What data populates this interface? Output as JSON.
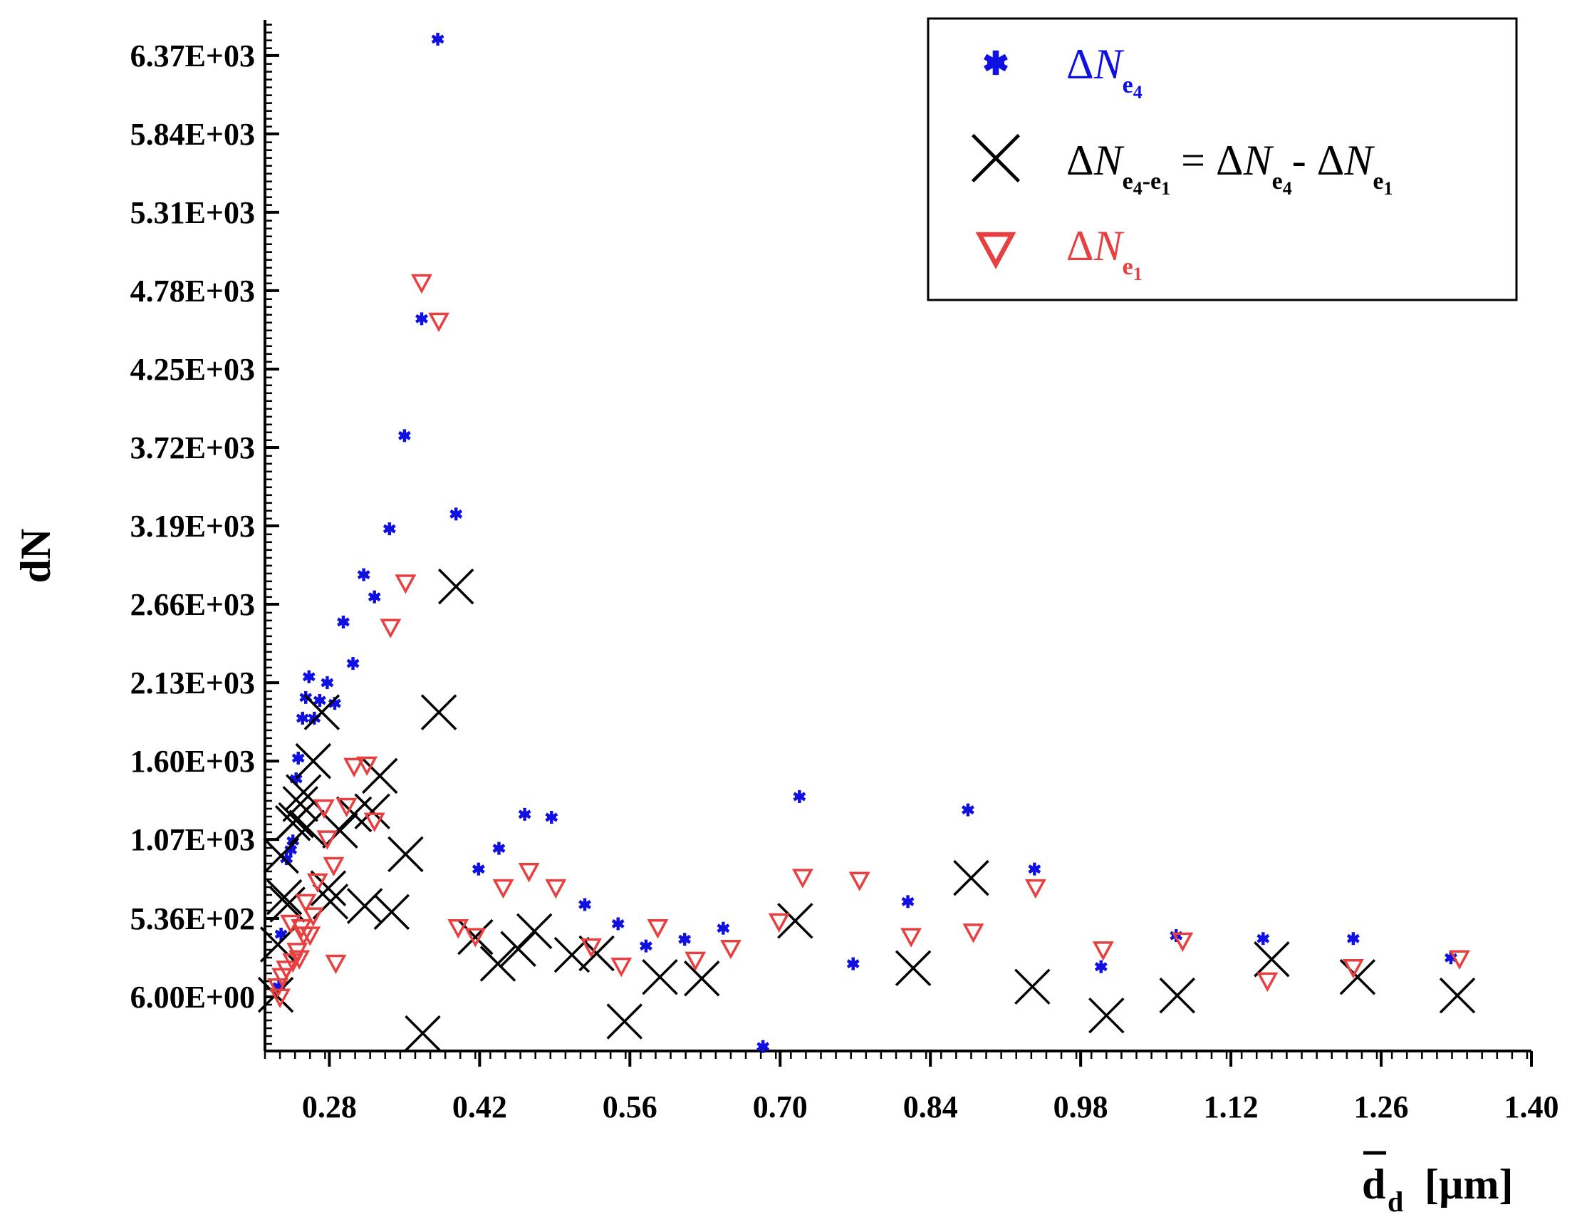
{
  "chart_data": {
    "type": "scatter",
    "title": "",
    "xlabel": "d_d [µm]",
    "xlabel_main": "d",
    "xlabel_sub": "d",
    "xlabel_unit": "[µm]",
    "ylabel": "dN",
    "xlim": [
      0.22,
      1.4
    ],
    "ylim": [
      -360,
      6610
    ],
    "x_ticks": [
      0.28,
      0.42,
      0.56,
      0.7,
      0.84,
      0.98,
      1.12,
      1.26,
      1.4
    ],
    "x_tick_labels": [
      "0.28",
      "0.42",
      "0.56",
      "0.70",
      "0.84",
      "0.98",
      "1.12",
      "1.26",
      "1.40"
    ],
    "y_ticks": [
      6,
      536,
      1070,
      1600,
      2130,
      2660,
      3190,
      3720,
      4250,
      4780,
      5310,
      5840,
      6370
    ],
    "y_tick_labels": [
      "6.00E+00",
      "5.36E+02",
      "1.07E+03",
      "1.60E+03",
      "2.13E+03",
      "2.66E+03",
      "3.19E+03",
      "3.72E+03",
      "4.25E+03",
      "4.78E+03",
      "5.31E+03",
      "5.84E+03",
      "6.37E+03"
    ],
    "legend_position": "top-right",
    "legend": [
      {
        "series": "dNe4",
        "delta": "Δ",
        "var": "N",
        "sub": "e",
        "subsub": "4",
        "mid": "",
        "var2": "",
        "sub2": "",
        "subsub2": "",
        "minus": "",
        "var3": "",
        "sub3": "",
        "subsub3": ""
      },
      {
        "series": "dNe4e1",
        "delta": "Δ",
        "var": "N",
        "sub": "e",
        "subsub": "4",
        "mid": "-e",
        "subsub_b": "1",
        "eq": " = ",
        "var2": "N",
        "sub2": "e",
        "subsub2": "4",
        "minus": "- ",
        "var3": "N",
        "sub3": "e",
        "subsub3": "1"
      },
      {
        "series": "dNe1",
        "delta": "Δ",
        "var": "N",
        "sub": "e",
        "subsub": "1"
      }
    ],
    "series": [
      {
        "name": "ΔN_e4",
        "key": "dNe4",
        "marker": "asterisk",
        "color": "#1010e0",
        "points": [
          [
            0.233,
            75
          ],
          [
            0.235,
            430
          ],
          [
            0.24,
            940
          ],
          [
            0.244,
            1000
          ],
          [
            0.246,
            1060
          ],
          [
            0.249,
            1480
          ],
          [
            0.251,
            1620
          ],
          [
            0.255,
            1890
          ],
          [
            0.258,
            2030
          ],
          [
            0.261,
            2170
          ],
          [
            0.266,
            1890
          ],
          [
            0.271,
            2010
          ],
          [
            0.278,
            2130
          ],
          [
            0.285,
            1990
          ],
          [
            0.293,
            2540
          ],
          [
            0.302,
            2260
          ],
          [
            0.312,
            2860
          ],
          [
            0.322,
            2710
          ],
          [
            0.336,
            3170
          ],
          [
            0.35,
            3800
          ],
          [
            0.366,
            4590
          ],
          [
            0.381,
            6480
          ],
          [
            0.398,
            3270
          ],
          [
            0.419,
            870
          ],
          [
            0.438,
            1010
          ],
          [
            0.462,
            1240
          ],
          [
            0.487,
            1220
          ],
          [
            0.518,
            630
          ],
          [
            0.549,
            500
          ],
          [
            0.575,
            350
          ],
          [
            0.611,
            395
          ],
          [
            0.647,
            470
          ],
          [
            0.684,
            -330
          ],
          [
            0.718,
            1360
          ],
          [
            0.768,
            230
          ],
          [
            0.819,
            650
          ],
          [
            0.875,
            1270
          ],
          [
            0.937,
            870
          ],
          [
            0.999,
            210
          ],
          [
            1.069,
            420
          ],
          [
            1.15,
            400
          ],
          [
            1.234,
            400
          ],
          [
            1.325,
            270
          ]
        ]
      },
      {
        "name": "ΔN_e4-e1 = ΔN_e4 - ΔN_e1",
        "key": "dNe4e1",
        "marker": "x",
        "color": "#000000",
        "points": [
          [
            0.23,
            20
          ],
          [
            0.232,
            360
          ],
          [
            0.235,
            960
          ],
          [
            0.238,
            680
          ],
          [
            0.241,
            630
          ],
          [
            0.246,
            1180
          ],
          [
            0.249,
            1200
          ],
          [
            0.253,
            1310
          ],
          [
            0.256,
            1390
          ],
          [
            0.259,
            1150
          ],
          [
            0.265,
            1600
          ],
          [
            0.273,
            1930
          ],
          [
            0.279,
            740
          ],
          [
            0.281,
            650
          ],
          [
            0.29,
            1130
          ],
          [
            0.303,
            1240
          ],
          [
            0.313,
            620
          ],
          [
            0.32,
            1260
          ],
          [
            0.327,
            1500
          ],
          [
            0.338,
            580
          ],
          [
            0.351,
            970
          ],
          [
            0.367,
            -240
          ],
          [
            0.382,
            1930
          ],
          [
            0.398,
            2780
          ],
          [
            0.416,
            410
          ],
          [
            0.437,
            230
          ],
          [
            0.456,
            330
          ],
          [
            0.471,
            450
          ],
          [
            0.506,
            290
          ],
          [
            0.529,
            300
          ],
          [
            0.555,
            -160
          ],
          [
            0.588,
            140
          ],
          [
            0.627,
            130
          ],
          [
            0.714,
            520
          ],
          [
            0.824,
            200
          ],
          [
            0.878,
            810
          ],
          [
            0.935,
            75
          ],
          [
            1.004,
            -120
          ],
          [
            1.07,
            15
          ],
          [
            1.158,
            260
          ],
          [
            1.238,
            140
          ],
          [
            1.331,
            15
          ]
        ]
      },
      {
        "name": "ΔN_e1",
        "key": "dNe1",
        "marker": "triangle-down",
        "color": "#e84040",
        "points": [
          [
            0.232,
            70
          ],
          [
            0.234,
            0
          ],
          [
            0.236,
            140
          ],
          [
            0.24,
            190
          ],
          [
            0.244,
            500
          ],
          [
            0.246,
            240
          ],
          [
            0.25,
            310
          ],
          [
            0.252,
            260
          ],
          [
            0.254,
            470
          ],
          [
            0.256,
            420
          ],
          [
            0.258,
            640
          ],
          [
            0.262,
            420
          ],
          [
            0.265,
            550
          ],
          [
            0.269,
            780
          ],
          [
            0.275,
            1280
          ],
          [
            0.278,
            1070
          ],
          [
            0.284,
            890
          ],
          [
            0.286,
            230
          ],
          [
            0.296,
            1290
          ],
          [
            0.303,
            1560
          ],
          [
            0.315,
            1570
          ],
          [
            0.322,
            1190
          ],
          [
            0.337,
            2500
          ],
          [
            0.351,
            2800
          ],
          [
            0.366,
            4830
          ],
          [
            0.382,
            4570
          ],
          [
            0.4,
            470
          ],
          [
            0.416,
            410
          ],
          [
            0.442,
            740
          ],
          [
            0.466,
            850
          ],
          [
            0.491,
            740
          ],
          [
            0.524,
            340
          ],
          [
            0.552,
            210
          ],
          [
            0.586,
            470
          ],
          [
            0.621,
            250
          ],
          [
            0.654,
            330
          ],
          [
            0.699,
            510
          ],
          [
            0.721,
            810
          ],
          [
            0.774,
            790
          ],
          [
            0.822,
            410
          ],
          [
            0.88,
            440
          ],
          [
            0.938,
            740
          ],
          [
            1.001,
            320
          ],
          [
            1.075,
            380
          ],
          [
            1.154,
            110
          ],
          [
            1.234,
            200
          ],
          [
            1.333,
            260
          ]
        ]
      }
    ]
  }
}
